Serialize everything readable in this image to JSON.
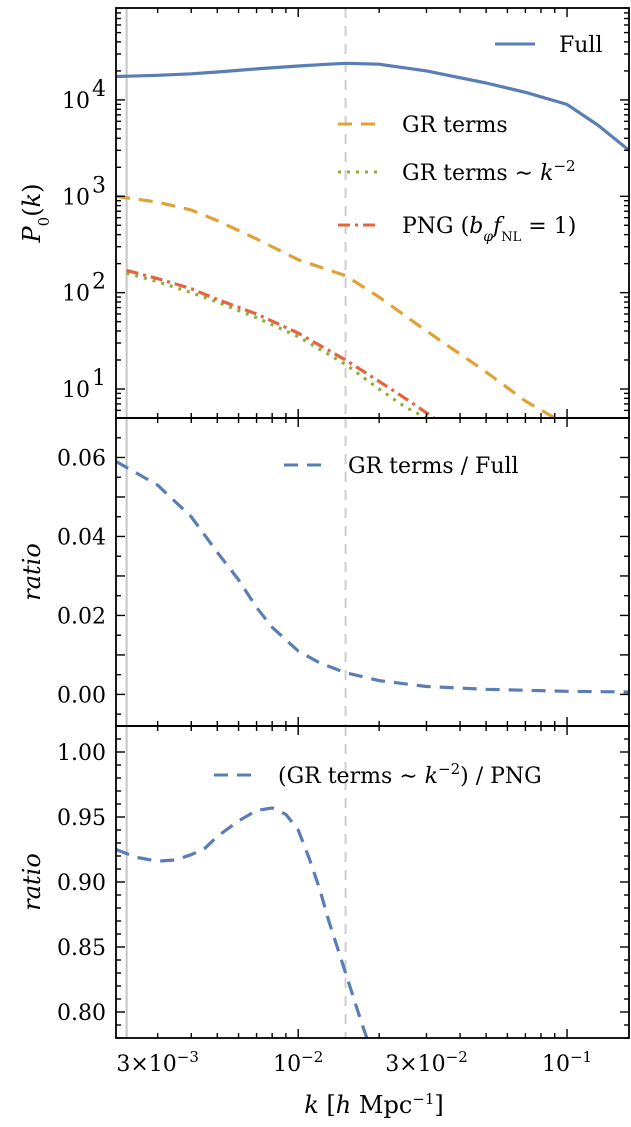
{
  "chart_data": [
    {
      "type": "line",
      "panel": "top",
      "ylabel": "P_0(k)",
      "yscale": "log",
      "xscale": "log",
      "xlim": [
        0.0021,
        0.17
      ],
      "ylim": [
        5,
        90000
      ],
      "y_tick_labels": [
        "10",
        "10",
        "10",
        "10"
      ],
      "y_tick_exponents": [
        "1",
        "2",
        "3",
        "4"
      ],
      "legend_position": "right",
      "reference_lines": {
        "solid_gray_x": 0.0023,
        "dashed_gray_x": 0.015
      },
      "series": [
        {
          "name": "Full",
          "color": "#5a7db4",
          "style": "solid",
          "x": [
            0.0021,
            0.003,
            0.004,
            0.005,
            0.007,
            0.01,
            0.013,
            0.015,
            0.02,
            0.03,
            0.05,
            0.07,
            0.1,
            0.13,
            0.17
          ],
          "y": [
            17500,
            18000,
            18700,
            19500,
            21000,
            22500,
            23500,
            24000,
            23500,
            20000,
            15000,
            12000,
            9000,
            5500,
            3000
          ]
        },
        {
          "name": "GR terms",
          "color": "#e0a234",
          "style": "dashed",
          "x": [
            0.0021,
            0.003,
            0.004,
            0.005,
            0.007,
            0.01,
            0.015,
            0.02,
            0.03,
            0.05,
            0.07,
            0.09
          ],
          "y": [
            1000,
            870,
            720,
            560,
            360,
            220,
            150,
            90,
            40,
            15,
            7.5,
            5
          ]
        },
        {
          "name": "GR terms ~ k^{-2}",
          "color": "#8fae3c",
          "style": "dotted",
          "x": [
            0.0023,
            0.003,
            0.004,
            0.005,
            0.007,
            0.01,
            0.015,
            0.02,
            0.025,
            0.03
          ],
          "y": [
            160,
            130,
            100,
            80,
            55,
            35,
            18,
            10,
            6.5,
            5
          ]
        },
        {
          "name": "PNG (b_φ f_NL = 1)",
          "color": "#e4643e",
          "style": "dashdot",
          "x": [
            0.0023,
            0.003,
            0.004,
            0.005,
            0.007,
            0.01,
            0.015,
            0.02,
            0.025,
            0.032
          ],
          "y": [
            170,
            140,
            110,
            85,
            60,
            38,
            20,
            12,
            8,
            5
          ]
        }
      ]
    },
    {
      "type": "line",
      "panel": "middle",
      "ylabel": "ratio",
      "xscale": "log",
      "xlim": [
        0.0021,
        0.17
      ],
      "ylim": [
        -0.008,
        0.07
      ],
      "y_tick_labels": [
        "0.00",
        "0.02",
        "0.04",
        "0.06"
      ],
      "legend_position": "top-right",
      "series": [
        {
          "name": "GR terms / Full",
          "color": "#5a7db4",
          "style": "dashed",
          "x": [
            0.0021,
            0.003,
            0.004,
            0.005,
            0.006,
            0.007,
            0.008,
            0.01,
            0.012,
            0.015,
            0.02,
            0.03,
            0.05,
            0.1,
            0.17
          ],
          "y": [
            0.059,
            0.053,
            0.045,
            0.036,
            0.029,
            0.022,
            0.017,
            0.011,
            0.008,
            0.0055,
            0.0035,
            0.002,
            0.0013,
            0.0008,
            0.0006
          ]
        }
      ]
    },
    {
      "type": "line",
      "panel": "bottom",
      "ylabel": "ratio",
      "xlabel": "k [h Mpc^{-1}]",
      "xscale": "log",
      "xlim": [
        0.0021,
        0.17
      ],
      "ylim": [
        0.78,
        1.02
      ],
      "y_tick_labels": [
        "0.80",
        "0.85",
        "0.90",
        "0.95",
        "1.00"
      ],
      "x_tick_labels": [
        "3×10",
        "10",
        "3×10",
        "10"
      ],
      "x_tick_exponents": [
        "−3",
        "−2",
        "−2",
        "−1"
      ],
      "legend_position": "top-right",
      "series": [
        {
          "name": "(GR terms ~ k^{-2}) / PNG",
          "color": "#5a7db4",
          "style": "dashed",
          "x": [
            0.0021,
            0.0025,
            0.003,
            0.0035,
            0.004,
            0.0045,
            0.005,
            0.006,
            0.007,
            0.008,
            0.009,
            0.01,
            0.011,
            0.012,
            0.013,
            0.015,
            0.017,
            0.018
          ],
          "y": [
            0.925,
            0.919,
            0.916,
            0.917,
            0.921,
            0.926,
            0.935,
            0.947,
            0.955,
            0.957,
            0.952,
            0.94,
            0.918,
            0.895,
            0.87,
            0.83,
            0.795,
            0.78
          ]
        }
      ]
    }
  ]
}
